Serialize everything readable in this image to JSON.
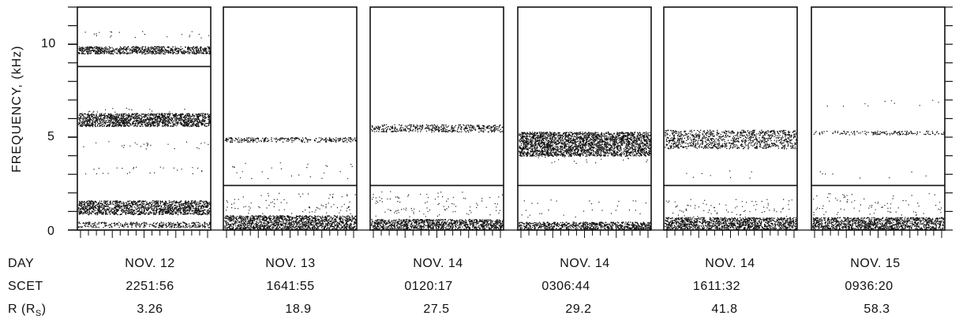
{
  "chart_data": {
    "type": "heatmap",
    "ylabel": "FREQUENCY, (kHz)",
    "ylim": [
      0,
      12
    ],
    "yticks": [
      "0",
      "5",
      "10"
    ],
    "row_labels": {
      "day": "DAY",
      "scet": "SCET",
      "r": "R",
      "r_paren_open": " (R",
      "r_sub": "S",
      "r_paren_close": ")"
    },
    "panels": [
      {
        "day": "NOV. 12",
        "scet": "2251:56",
        "r": "3.26",
        "line_khz": 8.8,
        "bands": [
          [
            0.15,
            0.45,
            0.5
          ],
          [
            0.85,
            1.6,
            0.85
          ],
          [
            5.6,
            6.3,
            0.95
          ],
          [
            9.5,
            9.9,
            0.85
          ]
        ],
        "dots": [
          [
            10.5,
            0.25
          ],
          [
            4.6,
            0.3
          ],
          [
            3.2,
            0.3
          ],
          [
            6.4,
            0.2
          ]
        ]
      },
      {
        "day": "NOV. 13",
        "scet": "1641:55",
        "r": "18.9",
        "line_khz": 2.4,
        "bands": [
          [
            0.05,
            0.8,
            0.9
          ],
          [
            4.75,
            5.0,
            0.5
          ]
        ],
        "dots": [
          [
            1.4,
            0.4
          ],
          [
            1.1,
            0.35
          ],
          [
            1.8,
            0.3
          ],
          [
            3.0,
            0.15
          ],
          [
            3.5,
            0.15
          ]
        ]
      },
      {
        "day": "NOV. 14",
        "scet": "0120:17",
        "r": "27.5",
        "line_khz": 2.4,
        "bands": [
          [
            0.05,
            0.6,
            0.85
          ],
          [
            5.3,
            5.7,
            0.5
          ]
        ],
        "dots": [
          [
            1.6,
            0.35
          ],
          [
            1.2,
            0.3
          ],
          [
            1.9,
            0.25
          ],
          [
            0.9,
            0.3
          ]
        ]
      },
      {
        "day": "NOV. 14",
        "scet": "0306:44",
        "r": "29.2",
        "line_khz": 2.4,
        "bands": [
          [
            0.05,
            0.45,
            0.85
          ],
          [
            4.0,
            5.3,
            0.92
          ]
        ],
        "dots": [
          [
            0.9,
            0.2
          ],
          [
            1.5,
            0.15
          ],
          [
            3.8,
            0.2
          ]
        ]
      },
      {
        "day": "NOV. 14",
        "scet": "1611:32",
        "r": "41.8",
        "line_khz": 2.4,
        "bands": [
          [
            0.05,
            0.7,
            0.85
          ],
          [
            4.4,
            5.4,
            0.45
          ]
        ],
        "dots": [
          [
            1.2,
            0.4
          ],
          [
            1.5,
            0.3
          ],
          [
            0.9,
            0.3
          ],
          [
            3.0,
            0.1
          ]
        ]
      },
      {
        "day": "NOV. 15",
        "scet": "0936:20",
        "r": "58.3",
        "line_khz": 2.4,
        "bands": [
          [
            0.05,
            0.7,
            0.85
          ],
          [
            5.15,
            5.35,
            0.35
          ]
        ],
        "dots": [
          [
            6.8,
            0.12
          ],
          [
            1.4,
            0.35
          ],
          [
            1.0,
            0.35
          ],
          [
            1.8,
            0.25
          ],
          [
            3.0,
            0.1
          ]
        ]
      }
    ]
  }
}
